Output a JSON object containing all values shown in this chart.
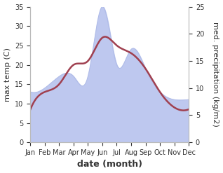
{
  "months": [
    "Jan",
    "Feb",
    "Mar",
    "Apr",
    "May",
    "Jun",
    "Jul",
    "Aug",
    "Sep",
    "Oct",
    "Nov",
    "Dec"
  ],
  "temp": [
    8.5,
    13.0,
    15.0,
    20.0,
    21.0,
    27.0,
    25.0,
    23.0,
    19.0,
    13.0,
    9.0,
    8.5
  ],
  "precip_left_scale": [
    13.0,
    14.0,
    17.0,
    17.0,
    17.0,
    35.0,
    20.0,
    24.0,
    19.0,
    13.0,
    11.0,
    11.0
  ],
  "temp_color": "#a04050",
  "precip_fill_color": "#bec8ef",
  "precip_edge_color": "#b0bce8",
  "temp_ylim": [
    0,
    35
  ],
  "precip_ylim": [
    0,
    25
  ],
  "xlabel": "date (month)",
  "ylabel_left": "max temp (C)",
  "ylabel_right": "med. precipitation (kg/m2)",
  "bg_color": "#ffffff",
  "tick_label_size": 7,
  "axis_label_size": 8,
  "xlabel_fontsize": 9
}
